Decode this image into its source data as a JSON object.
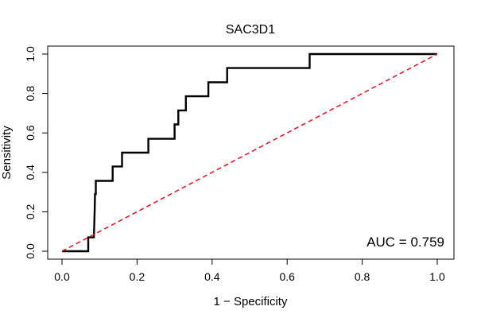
{
  "chart_data": {
    "type": "line",
    "title": "SAC3D1",
    "xlabel": "1 − Specificity",
    "ylabel": "Sensitivity",
    "xlim": [
      0,
      1
    ],
    "ylim": [
      0,
      1
    ],
    "xticks": [
      "0.0",
      "0.2",
      "0.4",
      "0.6",
      "0.8",
      "1.0"
    ],
    "yticks": [
      "0.0",
      "0.2",
      "0.4",
      "0.6",
      "0.8",
      "1.0"
    ],
    "grid": false,
    "annotation": "AUC = 0.759",
    "series": [
      {
        "style": "step",
        "color": "#000000",
        "x": [
          0,
          0.01,
          0.07,
          0.07,
          0.08,
          0.085,
          0.087,
          0.088,
          0.09,
          0.09,
          0.135,
          0.135,
          0.16,
          0.16,
          0.23,
          0.23,
          0.29,
          0.3,
          0.3,
          0.31,
          0.31,
          0.33,
          0.33,
          0.39,
          0.39,
          0.44,
          0.44,
          0.66,
          0.66,
          1.0
        ],
        "y": [
          0,
          0,
          0,
          0.07,
          0.07,
          0.07,
          0.21,
          0.29,
          0.29,
          0.357,
          0.357,
          0.43,
          0.43,
          0.5,
          0.5,
          0.57,
          0.57,
          0.57,
          0.643,
          0.643,
          0.714,
          0.714,
          0.786,
          0.786,
          0.857,
          0.857,
          0.929,
          0.929,
          1.0,
          1.0
        ]
      },
      {
        "style": "dashed",
        "color": "#e8192c",
        "x": [
          0,
          1
        ],
        "y": [
          0,
          1
        ]
      }
    ]
  }
}
